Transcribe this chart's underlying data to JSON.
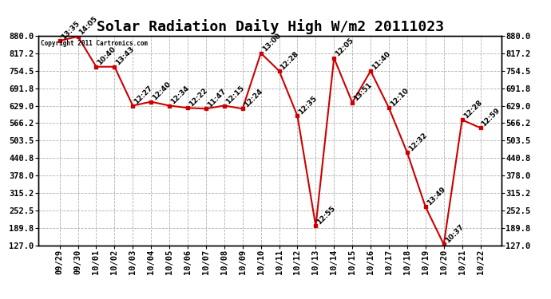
{
  "title": "Solar Radiation Daily High W/m2 20111023",
  "copyright_text": "Copyright 2011 Cartronics.com",
  "dates": [
    "09/29",
    "09/30",
    "10/01",
    "10/02",
    "10/03",
    "10/04",
    "10/05",
    "10/06",
    "10/07",
    "10/08",
    "10/09",
    "10/10",
    "10/11",
    "10/12",
    "10/13",
    "10/14",
    "10/15",
    "10/16",
    "10/17",
    "10/18",
    "10/19",
    "10/20",
    "10/21",
    "10/22"
  ],
  "values": [
    862,
    878,
    769,
    769,
    629,
    643,
    629,
    621,
    618,
    629,
    618,
    818,
    754,
    592,
    196,
    800,
    640,
    754,
    621,
    460,
    265,
    130,
    578,
    549
  ],
  "time_labels": [
    "13:35",
    "14:05",
    "10:40",
    "13:43",
    "12:27",
    "12:40",
    "12:34",
    "12:22",
    "11:47",
    "12:15",
    "12:24",
    "13:00",
    "12:28",
    "12:35",
    "12:55",
    "12:05",
    "13:51",
    "11:40",
    "12:10",
    "12:32",
    "13:49",
    "10:37",
    "12:28",
    "12:59"
  ],
  "ylim_min": 127.0,
  "ylim_max": 880.0,
  "yticks": [
    127.0,
    189.8,
    252.5,
    315.2,
    378.0,
    440.8,
    503.5,
    566.2,
    629.0,
    691.8,
    754.5,
    817.2,
    880.0
  ],
  "line_color": "#cc0000",
  "marker_color": "#cc0000",
  "bg_color": "#ffffff",
  "grid_color": "#b0b0b0",
  "title_fontsize": 13,
  "tick_fontsize": 7.5,
  "annotation_fontsize": 6.5
}
